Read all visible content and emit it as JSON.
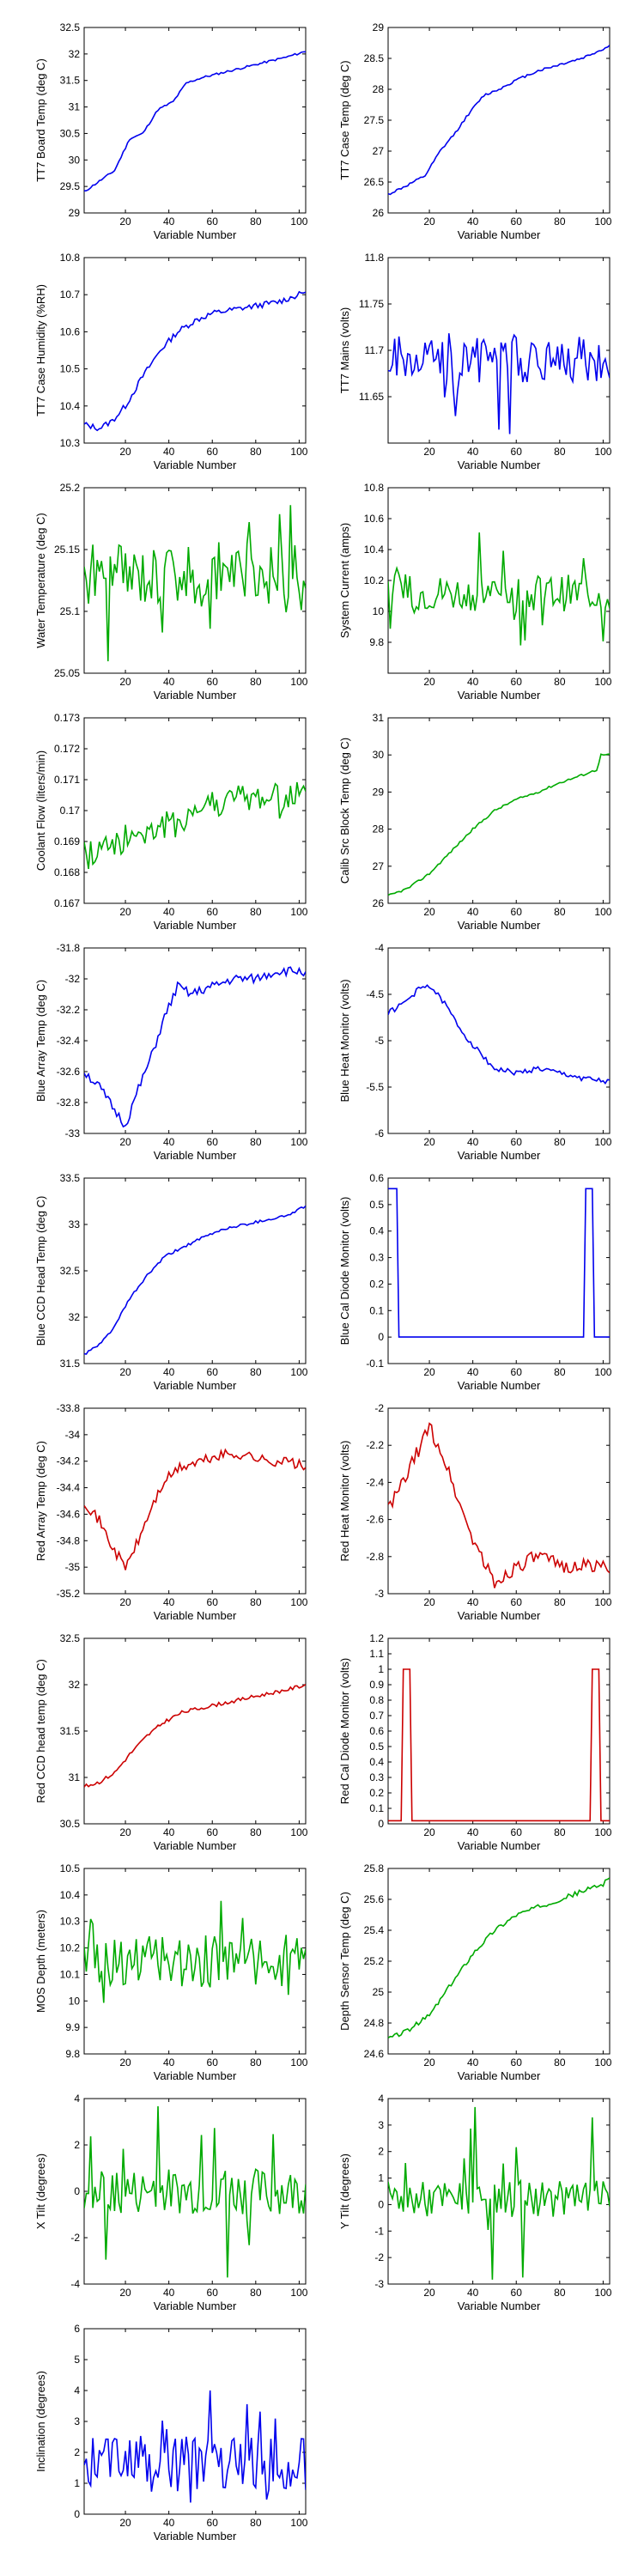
{
  "figure": {
    "xlabel": "Variable Number"
  },
  "colors": {
    "blue": "#0000ee",
    "green": "#00aa00",
    "red": "#cc0000",
    "axis": "#000000"
  },
  "chart_data": [
    {
      "id": "tt7-board-temp",
      "type": "line",
      "ylabel": "TT7 Board Temp (deg C)",
      "xlabel": "Variable Number",
      "xlim": [
        1,
        103
      ],
      "ylim": [
        29,
        32.5
      ],
      "xticks": [
        20,
        40,
        60,
        80,
        100
      ],
      "yticks": [
        29,
        29.5,
        30,
        30.5,
        31,
        31.5,
        32,
        32.5
      ],
      "color": "blue",
      "shape": "anchors",
      "points": [
        [
          1,
          29.4
        ],
        [
          8,
          29.6
        ],
        [
          15,
          29.8
        ],
        [
          22,
          30.4
        ],
        [
          28,
          30.5
        ],
        [
          35,
          30.95
        ],
        [
          42,
          31.1
        ],
        [
          48,
          31.45
        ],
        [
          55,
          31.55
        ],
        [
          65,
          31.65
        ],
        [
          75,
          31.75
        ],
        [
          85,
          31.85
        ],
        [
          95,
          31.95
        ],
        [
          103,
          32.05
        ]
      ],
      "noise": 0.02,
      "seed": 11
    },
    {
      "id": "tt7-case-temp",
      "type": "line",
      "ylabel": "TT7 Case Temp (deg C)",
      "xlabel": "Variable Number",
      "xlim": [
        1,
        103
      ],
      "ylim": [
        26,
        29
      ],
      "xticks": [
        20,
        40,
        60,
        80,
        100
      ],
      "yticks": [
        26,
        26.5,
        27,
        27.5,
        28,
        28.5,
        29
      ],
      "color": "blue",
      "shape": "anchors",
      "points": [
        [
          1,
          26.3
        ],
        [
          10,
          26.45
        ],
        [
          18,
          26.6
        ],
        [
          25,
          27.0
        ],
        [
          32,
          27.3
        ],
        [
          38,
          27.6
        ],
        [
          45,
          27.9
        ],
        [
          52,
          28.0
        ],
        [
          60,
          28.15
        ],
        [
          70,
          28.3
        ],
        [
          80,
          28.4
        ],
        [
          90,
          28.5
        ],
        [
          100,
          28.65
        ],
        [
          103,
          28.7
        ]
      ],
      "noise": 0.02,
      "seed": 12
    },
    {
      "id": "tt7-case-humidity",
      "type": "line",
      "ylabel": "TT7 Case Humidity (%RH)",
      "xlabel": "Variable Number",
      "xlim": [
        1,
        103
      ],
      "ylim": [
        10.3,
        10.8
      ],
      "xticks": [
        20,
        40,
        60,
        80,
        100
      ],
      "yticks": [
        10.3,
        10.4,
        10.5,
        10.6,
        10.7,
        10.8
      ],
      "color": "blue",
      "shape": "anchors",
      "points": [
        [
          1,
          10.35
        ],
        [
          8,
          10.34
        ],
        [
          14,
          10.36
        ],
        [
          20,
          10.4
        ],
        [
          28,
          10.48
        ],
        [
          36,
          10.55
        ],
        [
          44,
          10.6
        ],
        [
          52,
          10.63
        ],
        [
          60,
          10.65
        ],
        [
          70,
          10.66
        ],
        [
          80,
          10.67
        ],
        [
          90,
          10.68
        ],
        [
          100,
          10.7
        ],
        [
          103,
          10.71
        ]
      ],
      "noise": 0.008,
      "seed": 13
    },
    {
      "id": "tt7-mains",
      "type": "line",
      "ylabel": "TT7 Mains (volts)",
      "xlabel": "Variable Number",
      "xlim": [
        1,
        103
      ],
      "ylim": [
        11.6,
        11.8
      ],
      "xticks": [
        20,
        40,
        60,
        80,
        100
      ],
      "yticks": [
        11.65,
        11.7,
        11.75,
        11.8
      ],
      "color": "blue",
      "shape": "noise",
      "base": 11.69,
      "amp": 0.025,
      "spike": 0.07,
      "seed": 21
    },
    {
      "id": "water-temperature",
      "type": "line",
      "ylabel": "Water Temperature (deg C)",
      "xlabel": "Variable Number",
      "xlim": [
        1,
        103
      ],
      "ylim": [
        25.05,
        25.2
      ],
      "xticks": [
        20,
        40,
        60,
        80,
        100
      ],
      "yticks": [
        25.05,
        25.1,
        25.15,
        25.2
      ],
      "color": "green",
      "shape": "noise",
      "base": 25.13,
      "amp": 0.025,
      "spike": 0.05,
      "seed": 31
    },
    {
      "id": "system-current",
      "type": "line",
      "ylabel": "System Current (amps)",
      "xlabel": "Variable Number",
      "xlim": [
        1,
        103
      ],
      "ylim": [
        9.6,
        10.8
      ],
      "xticks": [
        20,
        40,
        60,
        80,
        100
      ],
      "yticks": [
        9.8,
        10,
        10.2,
        10.4,
        10.6,
        10.8
      ],
      "color": "green",
      "shape": "noise",
      "base": 10.12,
      "amp": 0.12,
      "spike": 0.35,
      "seed": 32
    },
    {
      "id": "coolant-flow",
      "type": "line",
      "ylabel": "Coolant Flow (liters/min)",
      "xlabel": "Variable Number",
      "xlim": [
        1,
        103
      ],
      "ylim": [
        0.167,
        0.173
      ],
      "xticks": [
        20,
        40,
        60,
        80,
        100
      ],
      "yticks": [
        0.167,
        0.168,
        0.169,
        0.17,
        0.171,
        0.172,
        0.173
      ],
      "color": "green",
      "shape": "trendnoise",
      "points": [
        [
          1,
          0.1685
        ],
        [
          15,
          0.169
        ],
        [
          40,
          0.1695
        ],
        [
          60,
          0.1703
        ],
        [
          100,
          0.1705
        ],
        [
          103,
          0.1705
        ]
      ],
      "amp": 0.0005,
      "spike": 0.001,
      "seed": 41
    },
    {
      "id": "calib-src-block-temp",
      "type": "line",
      "ylabel": "Calib Src Block Temp (deg C)",
      "xlabel": "Variable Number",
      "xlim": [
        1,
        103
      ],
      "ylim": [
        26,
        31
      ],
      "xticks": [
        20,
        40,
        60,
        80,
        100
      ],
      "yticks": [
        26,
        27,
        28,
        29,
        30,
        31
      ],
      "color": "green",
      "shape": "anchors",
      "points": [
        [
          1,
          26.2
        ],
        [
          10,
          26.4
        ],
        [
          20,
          26.8
        ],
        [
          30,
          27.4
        ],
        [
          40,
          28.0
        ],
        [
          50,
          28.5
        ],
        [
          60,
          28.8
        ],
        [
          70,
          29.0
        ],
        [
          80,
          29.25
        ],
        [
          90,
          29.45
        ],
        [
          97,
          29.6
        ],
        [
          99,
          30.0
        ],
        [
          103,
          30.0
        ]
      ],
      "noise": 0.03,
      "seed": 42
    },
    {
      "id": "blue-array-temp",
      "type": "line",
      "ylabel": "Blue Array Temp (deg C)",
      "xlabel": "Variable Number",
      "xlim": [
        1,
        103
      ],
      "ylim": [
        -33.0,
        -31.8
      ],
      "xticks": [
        20,
        40,
        60,
        80,
        100
      ],
      "yticks": [
        -33,
        -32.8,
        -32.6,
        -32.4,
        -32.2,
        -32,
        -31.8
      ],
      "color": "blue",
      "shape": "anchors",
      "points": [
        [
          1,
          -32.6
        ],
        [
          8,
          -32.7
        ],
        [
          15,
          -32.85
        ],
        [
          20,
          -32.95
        ],
        [
          25,
          -32.75
        ],
        [
          32,
          -32.5
        ],
        [
          38,
          -32.25
        ],
        [
          44,
          -32.05
        ],
        [
          50,
          -32.1
        ],
        [
          60,
          -32.05
        ],
        [
          70,
          -32.0
        ],
        [
          80,
          -32.0
        ],
        [
          90,
          -31.95
        ],
        [
          103,
          -31.95
        ]
      ],
      "noise": 0.03,
      "seed": 51
    },
    {
      "id": "blue-heat-monitor",
      "type": "line",
      "ylabel": "Blue Heat Monitor (volts)",
      "xlabel": "Variable Number",
      "xlim": [
        1,
        103
      ],
      "ylim": [
        -6,
        -4
      ],
      "xticks": [
        20,
        40,
        60,
        80,
        100
      ],
      "yticks": [
        -6,
        -5.5,
        -5,
        -4.5,
        -4
      ],
      "color": "blue",
      "shape": "anchors",
      "points": [
        [
          1,
          -4.7
        ],
        [
          8,
          -4.6
        ],
        [
          15,
          -4.45
        ],
        [
          20,
          -4.4
        ],
        [
          27,
          -4.6
        ],
        [
          35,
          -4.9
        ],
        [
          42,
          -5.1
        ],
        [
          50,
          -5.3
        ],
        [
          60,
          -5.35
        ],
        [
          70,
          -5.3
        ],
        [
          80,
          -5.35
        ],
        [
          90,
          -5.4
        ],
        [
          103,
          -5.45
        ]
      ],
      "noise": 0.03,
      "seed": 52
    },
    {
      "id": "blue-ccd-head-temp",
      "type": "line",
      "ylabel": "Blue CCD Head Temp (deg C)",
      "xlabel": "Variable Number",
      "xlim": [
        1,
        103
      ],
      "ylim": [
        31.5,
        33.5
      ],
      "xticks": [
        20,
        40,
        60,
        80,
        100
      ],
      "yticks": [
        31.5,
        32,
        32.5,
        33,
        33.5
      ],
      "color": "blue",
      "shape": "anchors",
      "points": [
        [
          1,
          31.6
        ],
        [
          8,
          31.7
        ],
        [
          15,
          31.9
        ],
        [
          22,
          32.2
        ],
        [
          30,
          32.45
        ],
        [
          38,
          32.65
        ],
        [
          46,
          32.75
        ],
        [
          55,
          32.85
        ],
        [
          65,
          32.95
        ],
        [
          75,
          33.0
        ],
        [
          85,
          33.05
        ],
        [
          95,
          33.1
        ],
        [
          103,
          33.2
        ]
      ],
      "noise": 0.015,
      "seed": 61
    },
    {
      "id": "blue-cal-diode-monitor",
      "type": "line",
      "ylabel": "Blue Cal Diode Monitor (volts)",
      "xlabel": "Variable Number",
      "xlim": [
        1,
        103
      ],
      "ylim": [
        -0.1,
        0.6
      ],
      "xticks": [
        20,
        40,
        60,
        80,
        100
      ],
      "yticks": [
        -0.1,
        0,
        0.1,
        0.2,
        0.3,
        0.4,
        0.5,
        0.6
      ],
      "color": "blue",
      "shape": "step",
      "base": 0,
      "high": 0.56,
      "pulses": [
        [
          1,
          5
        ],
        [
          92,
          95
        ]
      ]
    },
    {
      "id": "red-array-temp",
      "type": "line",
      "ylabel": "Red Array Temp (deg C)",
      "xlabel": "Variable Number",
      "xlim": [
        1,
        103
      ],
      "ylim": [
        -35.2,
        -33.8
      ],
      "xticks": [
        20,
        40,
        60,
        80,
        100
      ],
      "yticks": [
        -35.2,
        -35,
        -34.8,
        -34.6,
        -34.4,
        -34.2,
        -34,
        -33.8
      ],
      "color": "red",
      "shape": "anchors",
      "points": [
        [
          1,
          -34.5
        ],
        [
          8,
          -34.65
        ],
        [
          14,
          -34.85
        ],
        [
          20,
          -35.0
        ],
        [
          26,
          -34.8
        ],
        [
          32,
          -34.55
        ],
        [
          38,
          -34.35
        ],
        [
          45,
          -34.25
        ],
        [
          55,
          -34.2
        ],
        [
          65,
          -34.15
        ],
        [
          75,
          -34.15
        ],
        [
          85,
          -34.2
        ],
        [
          95,
          -34.2
        ],
        [
          103,
          -34.25
        ]
      ],
      "noise": 0.04,
      "seed": 71
    },
    {
      "id": "red-heat-monitor",
      "type": "line",
      "ylabel": "Red Heat Monitor (volts)",
      "xlabel": "Variable Number",
      "xlim": [
        1,
        103
      ],
      "ylim": [
        -3,
        -2
      ],
      "xticks": [
        20,
        40,
        60,
        80,
        100
      ],
      "yticks": [
        -3,
        -2.8,
        -2.6,
        -2.4,
        -2.2,
        -2
      ],
      "color": "red",
      "shape": "anchors",
      "points": [
        [
          1,
          -2.55
        ],
        [
          8,
          -2.4
        ],
        [
          14,
          -2.25
        ],
        [
          20,
          -2.1
        ],
        [
          26,
          -2.25
        ],
        [
          32,
          -2.45
        ],
        [
          38,
          -2.65
        ],
        [
          44,
          -2.8
        ],
        [
          50,
          -2.95
        ],
        [
          60,
          -2.85
        ],
        [
          70,
          -2.8
        ],
        [
          80,
          -2.85
        ],
        [
          90,
          -2.85
        ],
        [
          103,
          -2.85
        ]
      ],
      "noise": 0.04,
      "seed": 72
    },
    {
      "id": "red-ccd-head-temp",
      "type": "line",
      "ylabel": "Red CCD head temp (deg C)",
      "xlabel": "Variable Number",
      "xlim": [
        1,
        103
      ],
      "ylim": [
        30.5,
        32.5
      ],
      "xticks": [
        20,
        40,
        60,
        80,
        100
      ],
      "yticks": [
        30.5,
        31,
        31.5,
        32,
        32.5
      ],
      "color": "red",
      "shape": "anchors",
      "points": [
        [
          1,
          30.9
        ],
        [
          8,
          30.95
        ],
        [
          15,
          31.05
        ],
        [
          22,
          31.25
        ],
        [
          30,
          31.45
        ],
        [
          38,
          31.6
        ],
        [
          46,
          31.7
        ],
        [
          55,
          31.75
        ],
        [
          65,
          31.8
        ],
        [
          75,
          31.85
        ],
        [
          85,
          31.9
        ],
        [
          95,
          31.95
        ],
        [
          103,
          32.0
        ]
      ],
      "noise": 0.02,
      "seed": 81
    },
    {
      "id": "red-cal-diode-monitor",
      "type": "line",
      "ylabel": "Red Cal Diode Monitor (volts)",
      "xlabel": "Variable Number",
      "xlim": [
        1,
        103
      ],
      "ylim": [
        0,
        1.2
      ],
      "xticks": [
        20,
        40,
        60,
        80,
        100
      ],
      "yticks": [
        0,
        0.1,
        0.2,
        0.3,
        0.4,
        0.5,
        0.6,
        0.7,
        0.8,
        0.9,
        1,
        1.1,
        1.2
      ],
      "color": "red",
      "shape": "step",
      "base": 0.02,
      "high": 1.0,
      "pulses": [
        [
          8,
          11
        ],
        [
          95,
          98
        ]
      ]
    },
    {
      "id": "mos-depth",
      "type": "line",
      "ylabel": "MOS Depth (meters)",
      "xlabel": "Variable Number",
      "xlim": [
        1,
        103
      ],
      "ylim": [
        9.8,
        10.5
      ],
      "xticks": [
        20,
        40,
        60,
        80,
        100
      ],
      "yticks": [
        9.8,
        9.9,
        10,
        10.1,
        10.2,
        10.3,
        10.4,
        10.5
      ],
      "color": "green",
      "shape": "noise",
      "base": 10.15,
      "amp": 0.1,
      "spike": 0.25,
      "seed": 91
    },
    {
      "id": "depth-sensor-temp",
      "type": "line",
      "ylabel": "Depth Sensor Temp (deg C)",
      "xlabel": "Variable Number",
      "xlim": [
        1,
        103
      ],
      "ylim": [
        24.6,
        25.8
      ],
      "xticks": [
        20,
        40,
        60,
        80,
        100
      ],
      "yticks": [
        24.6,
        24.8,
        25,
        25.2,
        25.4,
        25.6,
        25.8
      ],
      "color": "green",
      "shape": "anchors",
      "points": [
        [
          1,
          24.7
        ],
        [
          10,
          24.75
        ],
        [
          20,
          24.85
        ],
        [
          30,
          25.05
        ],
        [
          40,
          25.25
        ],
        [
          50,
          25.4
        ],
        [
          60,
          25.5
        ],
        [
          70,
          25.55
        ],
        [
          80,
          25.6
        ],
        [
          90,
          25.65
        ],
        [
          100,
          25.7
        ],
        [
          103,
          25.75
        ]
      ],
      "noise": 0.015,
      "seed": 92
    },
    {
      "id": "x-tilt",
      "type": "line",
      "ylabel": "X Tilt (degrees)",
      "xlabel": "Variable Number",
      "xlim": [
        1,
        103
      ],
      "ylim": [
        -4,
        4
      ],
      "xticks": [
        20,
        40,
        60,
        80,
        100
      ],
      "yticks": [
        -4,
        -2,
        0,
        2,
        4
      ],
      "color": "green",
      "shape": "noise",
      "base": 0,
      "amp": 1.0,
      "spike": 3.5,
      "seed": 101
    },
    {
      "id": "y-tilt",
      "type": "line",
      "ylabel": "Y Tilt (degrees)",
      "xlabel": "Variable Number",
      "xlim": [
        1,
        103
      ],
      "ylim": [
        -3,
        4
      ],
      "xticks": [
        20,
        40,
        60,
        80,
        100
      ],
      "yticks": [
        -3,
        -2,
        -1,
        0,
        1,
        2,
        3,
        4
      ],
      "color": "green",
      "shape": "noise",
      "base": 0.2,
      "amp": 0.7,
      "spike": 3.2,
      "seed": 102
    },
    {
      "id": "inclination",
      "type": "line",
      "ylabel": "Inclination (degrees)",
      "xlabel": "Variable Number",
      "xlim": [
        1,
        103
      ],
      "ylim": [
        0,
        6
      ],
      "xticks": [
        20,
        40,
        60,
        80,
        100
      ],
      "yticks": [
        0,
        1,
        2,
        3,
        4,
        5,
        6
      ],
      "color": "blue",
      "shape": "noise",
      "base": 1.6,
      "amp": 0.9,
      "spike": 2.4,
      "floor": 0.2,
      "seed": 111
    }
  ]
}
